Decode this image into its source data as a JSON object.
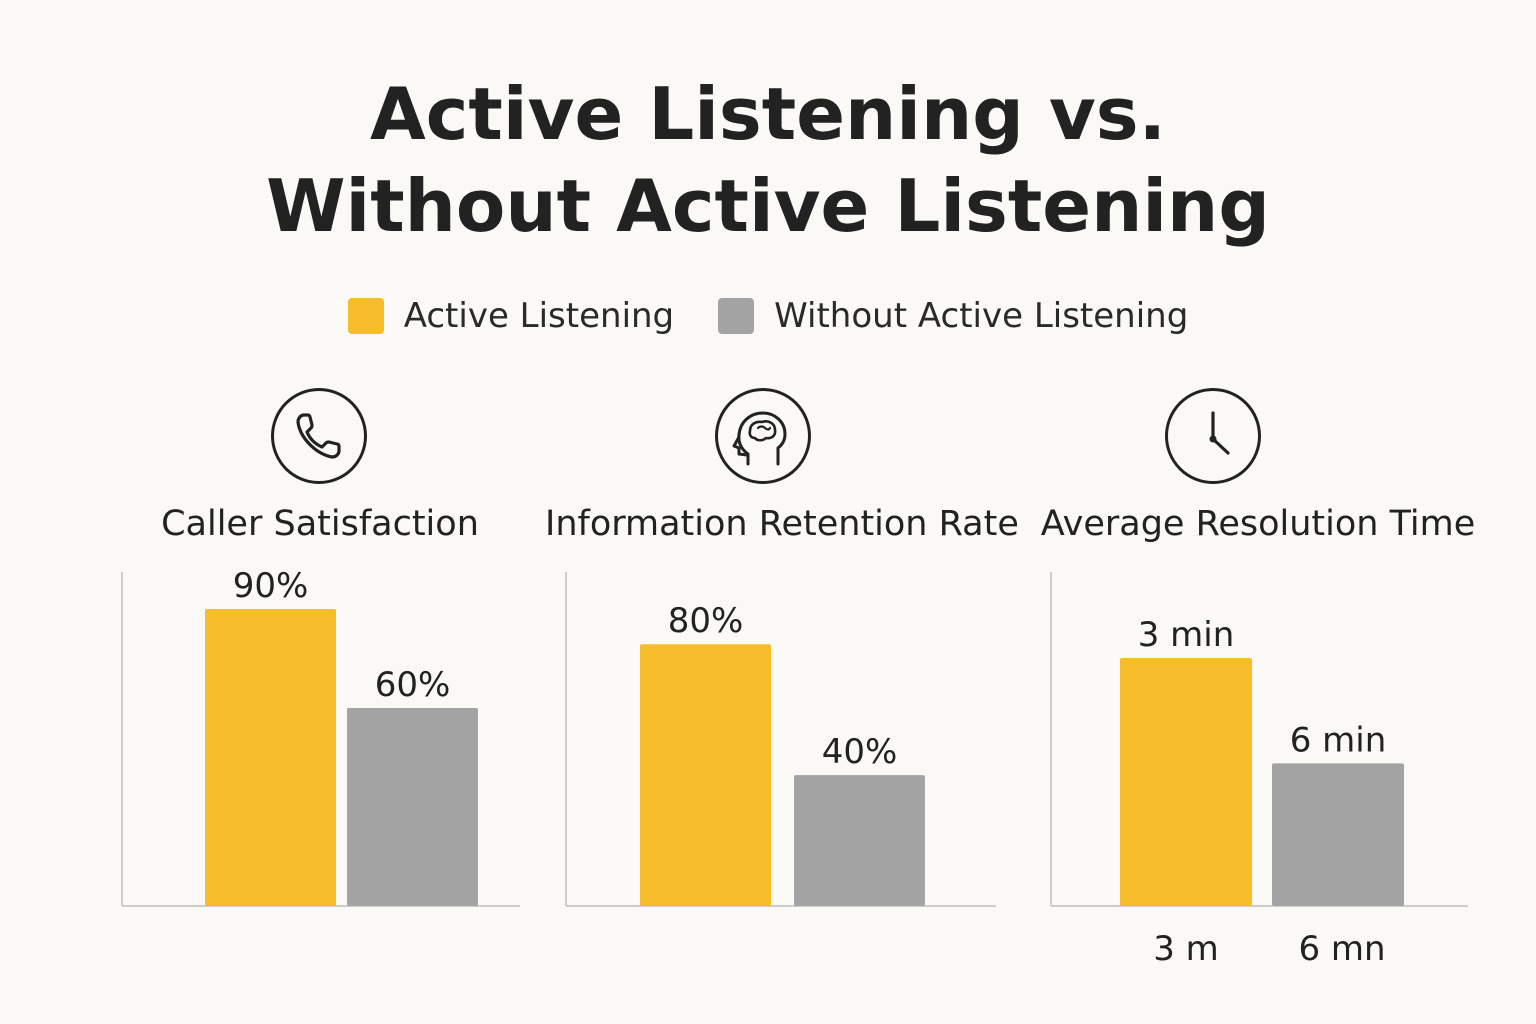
{
  "title": {
    "line1": "Active Listening vs.",
    "line2": "Without Active Listening"
  },
  "legend": {
    "items": [
      {
        "label": "Active Listening",
        "color": "#f5bd2a"
      },
      {
        "label": "Without Active Listening",
        "color": "#a3a3a3"
      }
    ]
  },
  "colors": {
    "active": "#f5bd2a",
    "without": "#a3a3a3",
    "axis": "#cccccc",
    "text": "#222222",
    "background": "#faf9f5"
  },
  "panels": [
    {
      "icon": "phone-icon",
      "label": "Caller Satisfaction"
    },
    {
      "icon": "brain-head-icon",
      "label": "Information Retention Rate"
    },
    {
      "icon": "clock-icon",
      "label": "Average Resolution Time"
    }
  ],
  "chart_data": [
    {
      "type": "bar",
      "title": "Caller Satisfaction",
      "categories": [
        "Active Listening",
        "Without Active Listening"
      ],
      "values": [
        90,
        60
      ],
      "data_labels": [
        "90%",
        "60%"
      ],
      "unit": "%",
      "ylim": [
        0,
        100
      ],
      "xlabel": "",
      "ylabel": "",
      "grid": false,
      "legend": "top-center"
    },
    {
      "type": "bar",
      "title": "Information Retention Rate",
      "categories": [
        "Active Listening",
        "Without Active Listening"
      ],
      "values": [
        80,
        40
      ],
      "data_labels": [
        "80%",
        "40%"
      ],
      "unit": "%",
      "ylim": [
        0,
        100
      ],
      "xlabel": "",
      "ylabel": "",
      "grid": false,
      "legend": "top-center"
    },
    {
      "type": "bar",
      "title": "Average Resolution Time",
      "categories": [
        "Active Listening",
        "Without Active Listening"
      ],
      "values": [
        3,
        6
      ],
      "data_labels": [
        "3 min",
        "6 min"
      ],
      "tick_labels": [
        "3 m",
        "6 mn"
      ],
      "unit": "min",
      "xlabel": "",
      "ylabel": "",
      "grid": false,
      "legend": "top-center"
    }
  ]
}
